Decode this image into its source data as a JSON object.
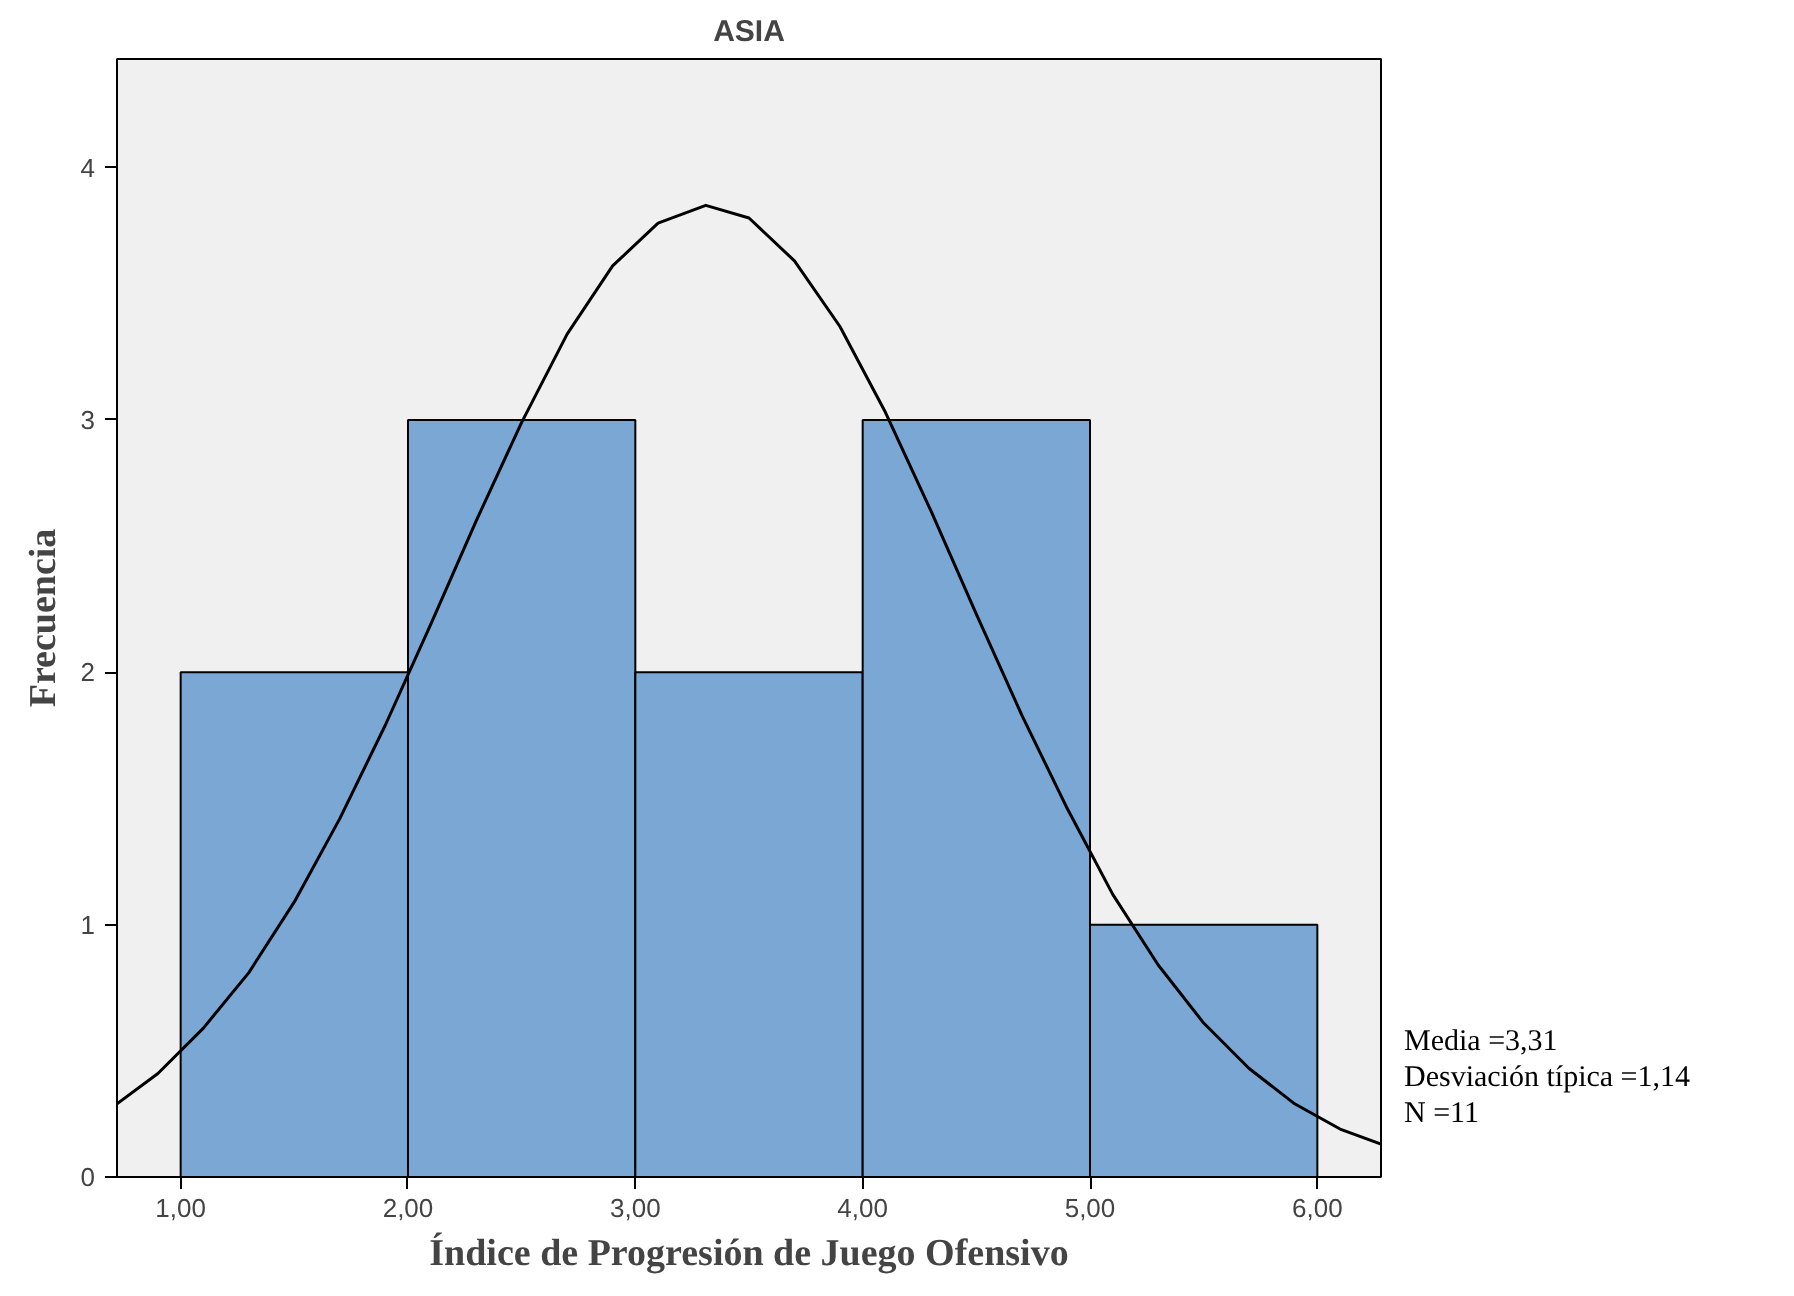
{
  "chart_data": {
    "type": "histogram",
    "title": "ASIA",
    "xlabel": "Índice de Progresión de Juego Ofensivo",
    "ylabel": "Frecuencia",
    "xlim": [
      0.72,
      6.28
    ],
    "ylim": [
      0,
      4.43
    ],
    "xticks": [
      {
        "value": 1,
        "label": "1,00"
      },
      {
        "value": 2,
        "label": "2,00"
      },
      {
        "value": 3,
        "label": "3,00"
      },
      {
        "value": 4,
        "label": "4,00"
      },
      {
        "value": 5,
        "label": "5,00"
      },
      {
        "value": 6,
        "label": "6,00"
      }
    ],
    "yticks": [
      0,
      1,
      2,
      3,
      4
    ],
    "grid": false,
    "series": [
      {
        "color": "#7ba7d4",
        "bins": [
          1,
          2,
          3,
          4,
          5,
          6
        ],
        "values": [
          2,
          3,
          2,
          3,
          1
        ]
      },
      {
        "type": "line",
        "color": "#000000",
        "x": [
          0.72,
          0.9,
          1.1,
          1.3,
          1.5,
          1.7,
          1.9,
          2.1,
          2.3,
          2.5,
          2.7,
          2.9,
          3.1,
          3.31,
          3.5,
          3.7,
          3.9,
          4.1,
          4.3,
          4.5,
          4.7,
          4.9,
          5.1,
          5.3,
          5.5,
          5.7,
          5.9,
          6.1,
          6.28
        ],
        "values": [
          0.29,
          0.41,
          0.59,
          0.81,
          1.09,
          1.42,
          1.79,
          2.19,
          2.6,
          2.99,
          3.34,
          3.61,
          3.78,
          3.85,
          3.8,
          3.63,
          3.37,
          3.03,
          2.64,
          2.23,
          1.83,
          1.46,
          1.12,
          0.84,
          0.61,
          0.43,
          0.29,
          0.19,
          0.13
        ]
      }
    ],
    "annotations": [
      "Media =3,31",
      "Desviación típica =1,14",
      "N =11"
    ]
  }
}
